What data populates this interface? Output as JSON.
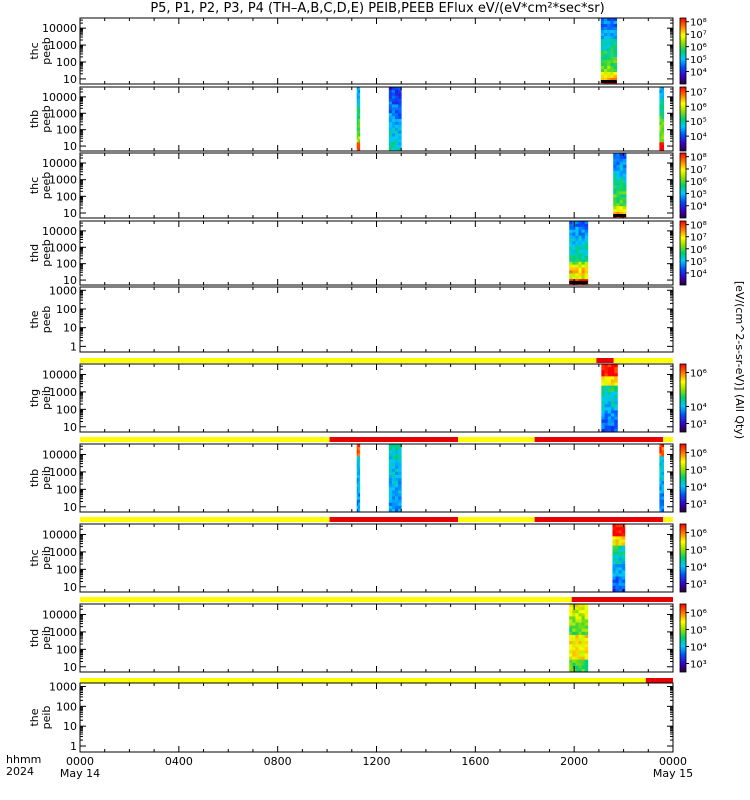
{
  "title": "P5, P1, P2, P3, P4 (TH–A,B,C,D,E) PEIB,PEEB EFlux eV/(eV*cm²*sec*sr)",
  "colorbar_title": "[eV/(cm^2-s-sr-eV)] (All Qty)",
  "time_axis": {
    "row1_label": "hhmm",
    "row2_label": "2024",
    "ticks": [
      {
        "t": 0,
        "label": "0000",
        "date": "May 14"
      },
      {
        "t": 4,
        "label": "0400",
        "date": ""
      },
      {
        "t": 8,
        "label": "0800",
        "date": ""
      },
      {
        "t": 12,
        "label": "1200",
        "date": ""
      },
      {
        "t": 16,
        "label": "1600",
        "date": ""
      },
      {
        "t": 20,
        "label": "2000",
        "date": ""
      },
      {
        "t": 24,
        "label": "0000",
        "date": "May 15"
      }
    ]
  },
  "colors": {
    "mode_yellow": "#ffff00",
    "mode_red": "#e60000",
    "data_black": "#000000"
  },
  "chart_data": [
    {
      "type": "heatmap",
      "ylabel": [
        "thc",
        "peeb"
      ],
      "yscale": "log",
      "ylim": [
        5,
        40000
      ],
      "yticks": [
        {
          "v": 10,
          "l": "10"
        },
        {
          "v": 100,
          "l": "100"
        },
        {
          "v": 1000,
          "l": "1000"
        },
        {
          "v": 10000,
          "l": "10000"
        }
      ],
      "clim": [
        3,
        8.3
      ],
      "colorbar_ticks": [
        {
          "v": 4,
          "l": "10⁴"
        },
        {
          "v": 5,
          "l": "10⁵"
        },
        {
          "v": 6,
          "l": "10⁶"
        },
        {
          "v": 7,
          "l": "10⁷"
        },
        {
          "v": 8,
          "l": "10⁸"
        }
      ],
      "blocks": [
        {
          "t0": 21.08,
          "t1": 21.72,
          "low_color": "#000000",
          "style": "hot-bottom"
        }
      ]
    },
    {
      "type": "heatmap",
      "ylabel": [
        "thb",
        "peeb"
      ],
      "yscale": "log",
      "ylim": [
        5,
        40000
      ],
      "yticks": [
        {
          "v": 10,
          "l": "10"
        },
        {
          "v": 100,
          "l": "100"
        },
        {
          "v": 1000,
          "l": "1000"
        },
        {
          "v": 10000,
          "l": "10000"
        }
      ],
      "clim": [
        3,
        7.3
      ],
      "colorbar_ticks": [
        {
          "v": 4,
          "l": "10⁴"
        },
        {
          "v": 5,
          "l": "10⁵"
        },
        {
          "v": 6,
          "l": "10⁶"
        },
        {
          "v": 7,
          "l": "10⁷"
        }
      ],
      "blocks": [
        {
          "t0": 11.2,
          "t1": 11.32,
          "style": "narrow-hot"
        },
        {
          "t0": 12.5,
          "t1": 13.0,
          "style": "cool"
        },
        {
          "t0": 23.45,
          "t1": 23.62,
          "style": "narrow-hot"
        }
      ]
    },
    {
      "type": "heatmap",
      "ylabel": [
        "thc",
        "peeb"
      ],
      "yscale": "log",
      "ylim": [
        5,
        40000
      ],
      "yticks": [
        {
          "v": 10,
          "l": "10"
        },
        {
          "v": 100,
          "l": "100"
        },
        {
          "v": 1000,
          "l": "1000"
        },
        {
          "v": 10000,
          "l": "10000"
        }
      ],
      "clim": [
        3,
        8.3
      ],
      "colorbar_ticks": [
        {
          "v": 4,
          "l": "10⁴"
        },
        {
          "v": 5,
          "l": "10⁵"
        },
        {
          "v": 6,
          "l": "10⁶"
        },
        {
          "v": 7,
          "l": "10⁷"
        },
        {
          "v": 8,
          "l": "10⁸"
        }
      ],
      "blocks": [
        {
          "t0": 21.58,
          "t1": 22.1,
          "style": "hot-bottom"
        }
      ]
    },
    {
      "type": "heatmap",
      "ylabel": [
        "thd",
        "peeb"
      ],
      "yscale": "log",
      "ylim": [
        5,
        40000
      ],
      "yticks": [
        {
          "v": 10,
          "l": "10"
        },
        {
          "v": 100,
          "l": "100"
        },
        {
          "v": 1000,
          "l": "1000"
        },
        {
          "v": 10000,
          "l": "10000"
        }
      ],
      "clim": [
        3,
        8.3
      ],
      "colorbar_ticks": [
        {
          "v": 4,
          "l": "10⁴"
        },
        {
          "v": 5,
          "l": "10⁵"
        },
        {
          "v": 6,
          "l": "10⁶"
        },
        {
          "v": 7,
          "l": "10⁷"
        },
        {
          "v": 8,
          "l": "10⁸"
        }
      ],
      "blocks": [
        {
          "t0": 19.8,
          "t1": 20.55,
          "style": "hot-mid"
        }
      ]
    },
    {
      "type": "heatmap",
      "ylabel": [
        "the",
        "peeb"
      ],
      "yscale": "log",
      "ylim": [
        0.5,
        1500
      ],
      "yticks": [
        {
          "v": 1,
          "l": "1"
        },
        {
          "v": 10,
          "l": "10"
        },
        {
          "v": 100,
          "l": "100"
        },
        {
          "v": 1000,
          "l": "1000"
        }
      ],
      "clim": null,
      "colorbar_ticks": [],
      "blocks": [],
      "mode_bar": [
        {
          "t0": 0,
          "t1": 20.9,
          "color": "yellow"
        },
        {
          "t0": 20.9,
          "t1": 21.6,
          "color": "red"
        },
        {
          "t0": 21.6,
          "t1": 24,
          "color": "yellow"
        }
      ]
    },
    {
      "type": "heatmap",
      "ylabel": [
        "thg",
        "peib"
      ],
      "yscale": "log",
      "ylim": [
        5,
        40000
      ],
      "yticks": [
        {
          "v": 10,
          "l": "10"
        },
        {
          "v": 100,
          "l": "100"
        },
        {
          "v": 1000,
          "l": "1000"
        },
        {
          "v": 10000,
          "l": "10000"
        }
      ],
      "clim": [
        2.5,
        6.5
      ],
      "colorbar_ticks": [
        {
          "v": 3,
          "l": "10³"
        },
        {
          "v": 4,
          "l": "10⁴"
        },
        {
          "v": 6,
          "l": "10⁶"
        }
      ],
      "blocks": [
        {
          "t0": 21.1,
          "t1": 21.75,
          "style": "ion-hot-top"
        }
      ],
      "mode_bar": [
        {
          "t0": 0,
          "t1": 10.1,
          "color": "yellow"
        },
        {
          "t0": 10.1,
          "t1": 15.3,
          "color": "red"
        },
        {
          "t0": 15.3,
          "t1": 18.4,
          "color": "yellow"
        },
        {
          "t0": 18.4,
          "t1": 23.6,
          "color": "red"
        },
        {
          "t0": 23.6,
          "t1": 24,
          "color": "yellow"
        }
      ]
    },
    {
      "type": "heatmap",
      "ylabel": [
        "thb",
        "peib"
      ],
      "yscale": "log",
      "ylim": [
        5,
        40000
      ],
      "yticks": [
        {
          "v": 10,
          "l": "10"
        },
        {
          "v": 100,
          "l": "100"
        },
        {
          "v": 1000,
          "l": "1000"
        },
        {
          "v": 10000,
          "l": "10000"
        }
      ],
      "clim": [
        2.5,
        6.5
      ],
      "colorbar_ticks": [
        {
          "v": 3,
          "l": "10³"
        },
        {
          "v": 4,
          "l": "10⁴"
        },
        {
          "v": 5,
          "l": "10⁵"
        },
        {
          "v": 6,
          "l": "10⁶"
        }
      ],
      "blocks": [
        {
          "t0": 11.2,
          "t1": 11.32,
          "style": "ion-narrow"
        },
        {
          "t0": 12.5,
          "t1": 13.0,
          "style": "ion-cool"
        },
        {
          "t0": 23.45,
          "t1": 23.62,
          "style": "ion-narrow"
        }
      ],
      "mode_bar": [
        {
          "t0": 0,
          "t1": 10.1,
          "color": "yellow"
        },
        {
          "t0": 10.1,
          "t1": 15.3,
          "color": "red"
        },
        {
          "t0": 15.3,
          "t1": 18.4,
          "color": "yellow"
        },
        {
          "t0": 18.4,
          "t1": 23.6,
          "color": "red"
        },
        {
          "t0": 23.6,
          "t1": 24,
          "color": "yellow"
        }
      ]
    },
    {
      "type": "heatmap",
      "ylabel": [
        "thc",
        "peib"
      ],
      "yscale": "log",
      "ylim": [
        5,
        40000
      ],
      "yticks": [
        {
          "v": 10,
          "l": "10"
        },
        {
          "v": 100,
          "l": "100"
        },
        {
          "v": 1000,
          "l": "1000"
        },
        {
          "v": 10000,
          "l": "10000"
        }
      ],
      "clim": [
        2.5,
        6.5
      ],
      "colorbar_ticks": [
        {
          "v": 3,
          "l": "10³"
        },
        {
          "v": 4,
          "l": "10⁴"
        },
        {
          "v": 5,
          "l": "10⁵"
        },
        {
          "v": 6,
          "l": "10⁶"
        }
      ],
      "blocks": [
        {
          "t0": 21.55,
          "t1": 22.05,
          "style": "ion-hot-top"
        }
      ],
      "mode_bar": [
        {
          "t0": 0,
          "t1": 19.9,
          "color": "yellow"
        },
        {
          "t0": 19.9,
          "t1": 24,
          "color": "red"
        }
      ]
    },
    {
      "type": "heatmap",
      "ylabel": [
        "thd",
        "peib"
      ],
      "yscale": "log",
      "ylim": [
        5,
        40000
      ],
      "yticks": [
        {
          "v": 10,
          "l": "10"
        },
        {
          "v": 100,
          "l": "100"
        },
        {
          "v": 1000,
          "l": "1000"
        },
        {
          "v": 10000,
          "l": "10000"
        }
      ],
      "clim": [
        2.5,
        6.5
      ],
      "colorbar_ticks": [
        {
          "v": 3,
          "l": "10³"
        },
        {
          "v": 4,
          "l": "10⁴"
        },
        {
          "v": 5,
          "l": "10⁵"
        },
        {
          "v": 6,
          "l": "10⁶"
        }
      ],
      "blocks": [
        {
          "t0": 19.8,
          "t1": 20.55,
          "style": "ion-hot-mid"
        }
      ],
      "mode_bar": [
        {
          "t0": 0,
          "t1": 22.9,
          "color": "yellow"
        },
        {
          "t0": 22.9,
          "t1": 24,
          "color": "red"
        }
      ]
    },
    {
      "type": "heatmap",
      "ylabel": [
        "the",
        "peib"
      ],
      "yscale": "log",
      "ylim": [
        0.5,
        1500
      ],
      "yticks": [
        {
          "v": 1,
          "l": "1"
        },
        {
          "v": 10,
          "l": "10"
        },
        {
          "v": 100,
          "l": "100"
        },
        {
          "v": 1000,
          "l": "1000"
        }
      ],
      "clim": null,
      "colorbar_ticks": [],
      "blocks": []
    }
  ]
}
